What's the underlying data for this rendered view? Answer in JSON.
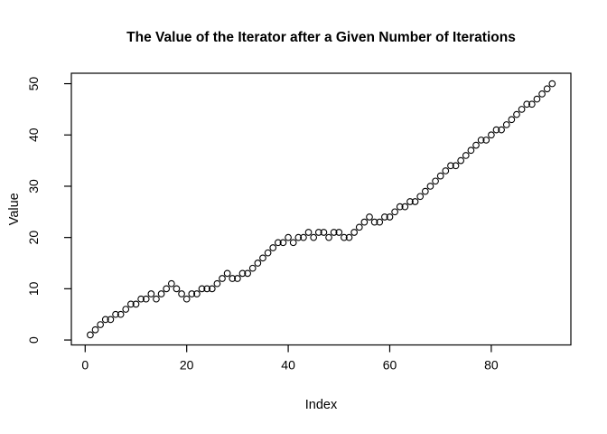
{
  "window": {
    "background_color": "#ffffff",
    "foreground_color": "#000000"
  },
  "chart_data": {
    "type": "scatter",
    "title": "The Value of the Iterator after a Given Number of Iterations",
    "xlabel": "Index",
    "ylabel": "Value",
    "point_style": "open-circle",
    "point_color": "#000000",
    "grid": false,
    "legend": "none",
    "xticks": [
      0,
      20,
      40,
      60,
      80
    ],
    "yticks": [
      0,
      10,
      20,
      30,
      40,
      50
    ],
    "xlim": [
      -2.72,
      95.68
    ],
    "ylim": [
      -0.96,
      52.04
    ],
    "x_start_index": 1,
    "values": [
      1,
      2,
      3,
      4,
      4,
      5,
      5,
      6,
      7,
      7,
      8,
      8,
      9,
      8,
      9,
      10,
      11,
      10,
      9,
      8,
      9,
      9,
      10,
      10,
      10,
      11,
      12,
      13,
      12,
      12,
      13,
      13,
      14,
      15,
      16,
      17,
      18,
      19,
      19,
      20,
      19,
      20,
      20,
      21,
      20,
      21,
      21,
      20,
      21,
      21,
      20,
      20,
      21,
      22,
      23,
      24,
      23,
      23,
      24,
      24,
      25,
      26,
      26,
      27,
      27,
      28,
      29,
      30,
      31,
      32,
      33,
      34,
      34,
      35,
      36,
      37,
      38,
      39,
      39,
      40,
      41,
      41,
      42,
      43,
      44,
      45,
      46,
      46,
      47,
      48,
      49,
      50
    ]
  }
}
